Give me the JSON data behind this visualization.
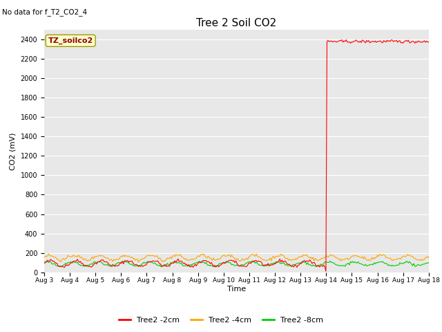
{
  "title": "Tree 2 Soil CO2",
  "no_data_text": "No data for f_T2_CO2_4",
  "ylabel": "CO2 (mV)",
  "xlabel": "Time",
  "ylim": [
    0,
    2500
  ],
  "yticks": [
    0,
    200,
    400,
    600,
    800,
    1000,
    1200,
    1400,
    1600,
    1800,
    2000,
    2200,
    2400
  ],
  "xtick_labels": [
    "Aug 3",
    "Aug 4",
    "Aug 5",
    "Aug 6",
    "Aug 7",
    "Aug 8",
    "Aug 9",
    "Aug 10",
    "Aug 11",
    "Aug 12",
    "Aug 13",
    "Aug 14",
    "Aug 15",
    "Aug 16",
    "Aug 17",
    "Aug 18"
  ],
  "legend_entries": [
    "Tree2 -2cm",
    "Tree2 -4cm",
    "Tree2 -8cm"
  ],
  "legend_colors": [
    "#ff0000",
    "#ffa500",
    "#00cc00"
  ],
  "plot_legend_label": "TZ_soilco2",
  "bg_color": "#e8e8e8",
  "fig_color": "#ffffff",
  "red_base_mean": 90,
  "red_base_amp": 30,
  "orange_base_mean": 150,
  "orange_base_amp": 25,
  "green_base_mean": 85,
  "green_base_amp": 20,
  "spike_value": 2380,
  "spike_day_index": 11,
  "n_days": 15,
  "n_points_per_day": 24
}
